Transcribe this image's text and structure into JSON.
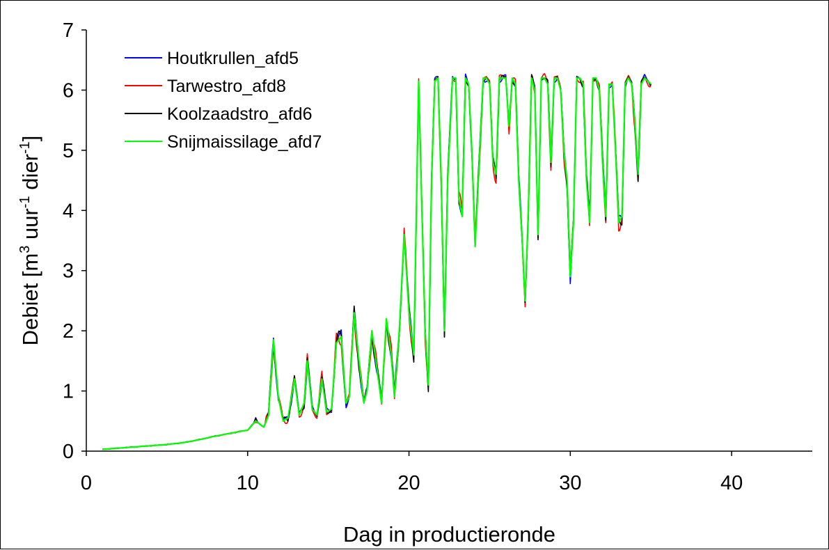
{
  "chart_data": {
    "type": "line",
    "xlabel": "Dag in productieronde",
    "ylabel_parts": {
      "a": "Debiet [m",
      "b": "3",
      "c": " uur",
      "d": "-1",
      "e": " dier",
      "f": "-1",
      "g": "]"
    },
    "xlim": [
      0,
      45
    ],
    "ylim": [
      0,
      7
    ],
    "xticks": [
      "0",
      "10",
      "20",
      "30",
      "40"
    ],
    "yticks": [
      "0",
      "1",
      "2",
      "3",
      "4",
      "5",
      "6",
      "7"
    ],
    "grid": false,
    "legend_position": "top-left",
    "series": [
      {
        "name": "Houtkrullen_afd5",
        "color": "#0000ff"
      },
      {
        "name": "Tarwestro_afd8",
        "color": "#ff0000"
      },
      {
        "name": "Koolzaadstro_afd6",
        "color": "#000000"
      },
      {
        "name": "Snijmaissilage_afd7",
        "color": "#00ff00"
      }
    ],
    "base_profile": [
      [
        1.0,
        0.03
      ],
      [
        2.0,
        0.05
      ],
      [
        3.0,
        0.07
      ],
      [
        4.0,
        0.09
      ],
      [
        5.0,
        0.11
      ],
      [
        6.0,
        0.14
      ],
      [
        7.0,
        0.19
      ],
      [
        8.0,
        0.25
      ],
      [
        9.0,
        0.3
      ],
      [
        10.0,
        0.35
      ],
      [
        10.5,
        0.5
      ],
      [
        11.0,
        0.4
      ],
      [
        11.3,
        0.6
      ],
      [
        11.6,
        1.85
      ],
      [
        11.9,
        0.9
      ],
      [
        12.2,
        0.5
      ],
      [
        12.5,
        0.55
      ],
      [
        12.9,
        1.2
      ],
      [
        13.2,
        0.6
      ],
      [
        13.5,
        0.8
      ],
      [
        13.7,
        1.5
      ],
      [
        14.0,
        0.7
      ],
      [
        14.3,
        0.6
      ],
      [
        14.6,
        1.2
      ],
      [
        14.9,
        0.65
      ],
      [
        15.2,
        0.7
      ],
      [
        15.5,
        1.8
      ],
      [
        15.8,
        1.9
      ],
      [
        16.1,
        0.8
      ],
      [
        16.3,
        0.9
      ],
      [
        16.6,
        2.3
      ],
      [
        16.9,
        1.5
      ],
      [
        17.2,
        0.8
      ],
      [
        17.4,
        1.0
      ],
      [
        17.7,
        2.0
      ],
      [
        18.0,
        1.4
      ],
      [
        18.3,
        0.8
      ],
      [
        18.6,
        2.2
      ],
      [
        18.9,
        1.6
      ],
      [
        19.1,
        0.9
      ],
      [
        19.4,
        2.0
      ],
      [
        19.7,
        3.6
      ],
      [
        20.0,
        2.3
      ],
      [
        20.3,
        1.6
      ],
      [
        20.6,
        6.15
      ],
      [
        20.8,
        4.0
      ],
      [
        21.0,
        2.0
      ],
      [
        21.2,
        1.1
      ],
      [
        21.4,
        4.5
      ],
      [
        21.6,
        6.15
      ],
      [
        21.8,
        6.2
      ],
      [
        22.0,
        4.5
      ],
      [
        22.2,
        2.0
      ],
      [
        22.4,
        4.5
      ],
      [
        22.7,
        6.2
      ],
      [
        22.9,
        6.2
      ],
      [
        23.1,
        4.2
      ],
      [
        23.3,
        3.9
      ],
      [
        23.5,
        6.2
      ],
      [
        23.7,
        6.1
      ],
      [
        23.9,
        5.0
      ],
      [
        24.1,
        3.4
      ],
      [
        24.3,
        4.5
      ],
      [
        24.6,
        6.2
      ],
      [
        24.8,
        6.2
      ],
      [
        25.0,
        6.1
      ],
      [
        25.2,
        4.8
      ],
      [
        25.4,
        4.6
      ],
      [
        25.6,
        6.2
      ],
      [
        25.8,
        6.2
      ],
      [
        26.0,
        6.2
      ],
      [
        26.2,
        5.4
      ],
      [
        26.4,
        6.2
      ],
      [
        26.6,
        6.1
      ],
      [
        26.8,
        4.5
      ],
      [
        27.0,
        3.6
      ],
      [
        27.2,
        2.5
      ],
      [
        27.4,
        4.0
      ],
      [
        27.6,
        6.2
      ],
      [
        27.8,
        6.0
      ],
      [
        28.0,
        3.6
      ],
      [
        28.2,
        6.2
      ],
      [
        28.4,
        6.2
      ],
      [
        28.6,
        6.1
      ],
      [
        28.8,
        4.8
      ],
      [
        29.0,
        6.2
      ],
      [
        29.2,
        6.2
      ],
      [
        29.4,
        6.0
      ],
      [
        29.6,
        5.0
      ],
      [
        29.8,
        4.5
      ],
      [
        30.0,
        2.9
      ],
      [
        30.2,
        3.8
      ],
      [
        30.4,
        6.2
      ],
      [
        30.6,
        6.2
      ],
      [
        30.8,
        6.1
      ],
      [
        31.0,
        4.5
      ],
      [
        31.2,
        3.8
      ],
      [
        31.4,
        6.2
      ],
      [
        31.6,
        6.2
      ],
      [
        31.8,
        6.0
      ],
      [
        32.0,
        4.8
      ],
      [
        32.2,
        3.9
      ],
      [
        32.4,
        6.1
      ],
      [
        32.6,
        6.1
      ],
      [
        32.8,
        5.0
      ],
      [
        33.0,
        3.8
      ],
      [
        33.2,
        3.9
      ],
      [
        33.4,
        6.1
      ],
      [
        33.6,
        6.2
      ],
      [
        33.8,
        6.1
      ],
      [
        34.0,
        5.5
      ],
      [
        34.2,
        4.6
      ],
      [
        34.4,
        6.1
      ],
      [
        34.6,
        6.2
      ],
      [
        34.8,
        6.15
      ],
      [
        35.0,
        6.1
      ]
    ]
  }
}
